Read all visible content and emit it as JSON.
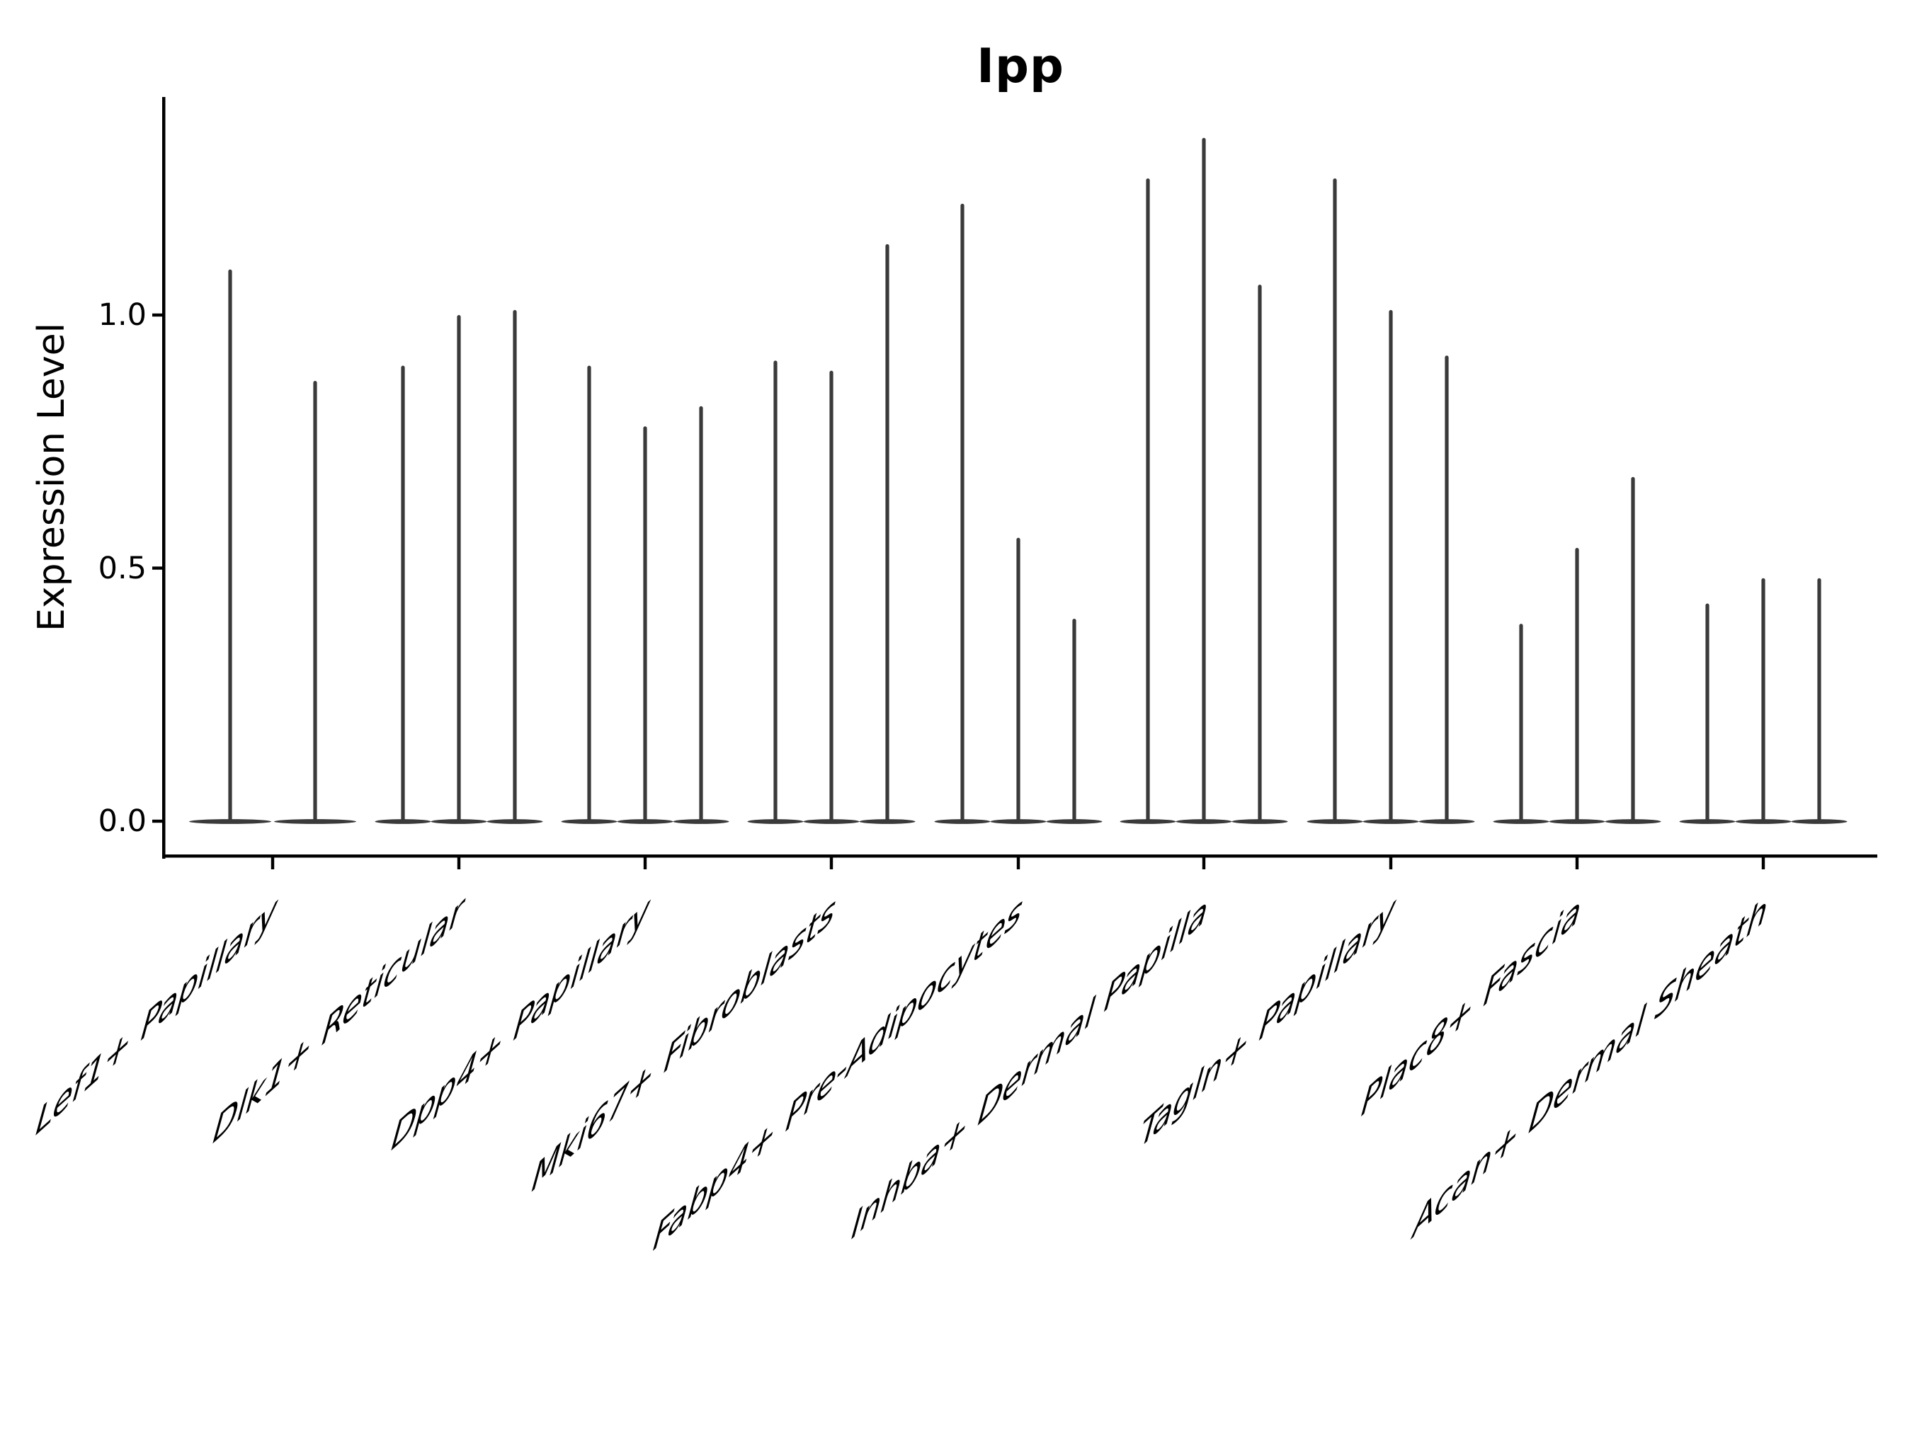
{
  "title": "Ipp",
  "y_axis": {
    "label": "Expression Level",
    "tick_labels": [
      "0.0",
      "0.5",
      "1.0"
    ]
  },
  "chart_data": {
    "type": "violin",
    "title": "Ipp",
    "xlabel": "",
    "ylabel": "Expression Level",
    "categories": [
      "Lef1+ Papillary",
      "Dlk1+ Reticular",
      "Dpp4+ Papillary",
      "Mki67+ Fibroblasts",
      "Fabp4+ Pre-Adipocytes",
      "Inhba+ Dermal Papilla",
      "Tagln+ Papillary",
      "Plac8+ Fascia",
      "Acan+ Dermal Sheath"
    ],
    "series": [
      {
        "category": "Lef1+ Papillary",
        "peak_values": [
          1.09,
          0.87
        ]
      },
      {
        "category": "Dlk1+ Reticular",
        "peak_values": [
          0.9,
          1.0,
          1.01
        ]
      },
      {
        "category": "Dpp4+ Papillary",
        "peak_values": [
          0.9,
          0.78,
          0.82
        ]
      },
      {
        "category": "Mki67+ Fibroblasts",
        "peak_values": [
          0.91,
          0.89,
          1.14
        ]
      },
      {
        "category": "Fabp4+ Pre-Adipocytes",
        "peak_values": [
          1.22,
          0.56,
          0.4
        ]
      },
      {
        "category": "Inhba+ Dermal Papilla",
        "peak_values": [
          1.27,
          1.35,
          1.06
        ]
      },
      {
        "category": "Tagln+ Papillary",
        "peak_values": [
          1.27,
          1.01,
          0.92
        ]
      },
      {
        "category": "Plac8+ Fascia",
        "peak_values": [
          0.39,
          0.54,
          0.68
        ]
      },
      {
        "category": "Acan+ Dermal Sheath",
        "peak_values": [
          0.43,
          0.48,
          0.48
        ]
      }
    ],
    "bulk_at_value": 0.0,
    "ylim": [
      -0.07,
      1.43
    ],
    "yticks": [
      0.0,
      0.5,
      1.0
    ],
    "ytick_labels": [
      "0.0",
      "0.5",
      "1.0"
    ],
    "grid": false,
    "legend": "none",
    "violin_color": "#3a3a3a",
    "axis_color": "#000000"
  }
}
